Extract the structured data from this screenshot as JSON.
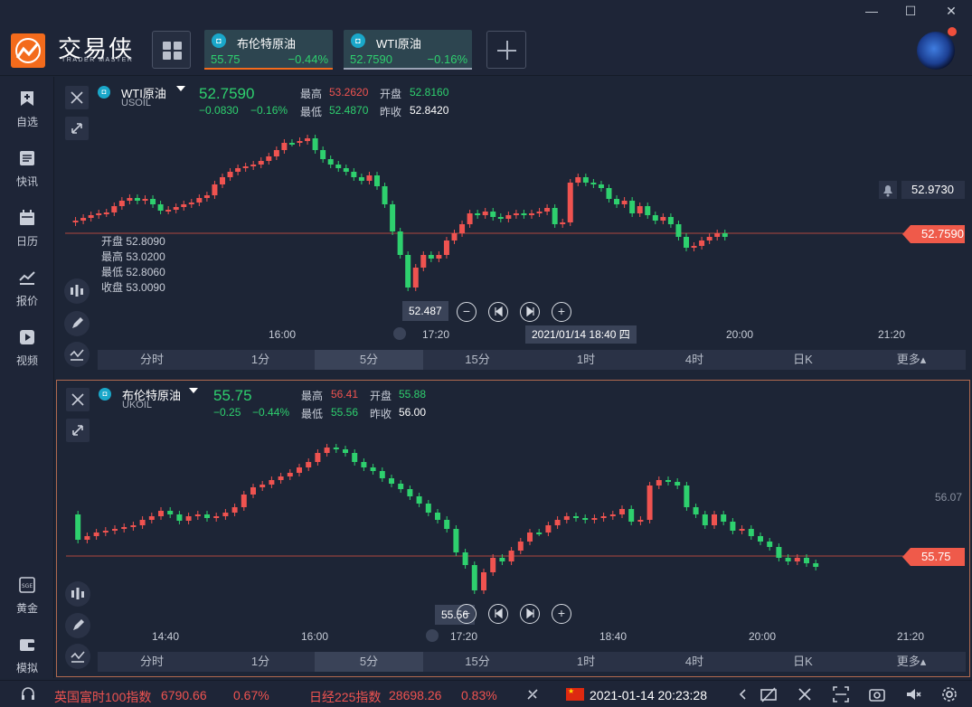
{
  "window": {
    "minimize": "—",
    "maximize": "☐",
    "close": "✕"
  },
  "brand": {
    "name": "交易侠",
    "sub": "TRADER MASTER"
  },
  "tabs": [
    {
      "name": "布伦特原油",
      "price": "55.75",
      "change": "−0.44%",
      "underline": "#f36b1c"
    },
    {
      "name": "WTI原油",
      "price": "52.7590",
      "change": "−0.16%",
      "underline": "#9aa3b5"
    }
  ],
  "sidebar": [
    {
      "label": "自选",
      "icon": "bookmark-icon"
    },
    {
      "label": "快讯",
      "icon": "news-icon"
    },
    {
      "label": "日历",
      "icon": "calendar-icon"
    },
    {
      "label": "报价",
      "icon": "quotes-icon"
    },
    {
      "label": "视频",
      "icon": "video-icon"
    },
    {
      "label": "黄金",
      "icon": "gold-icon"
    },
    {
      "label": "模拟",
      "icon": "wallet-icon"
    }
  ],
  "timeframes": [
    "分时",
    "1分",
    "5分",
    "15分",
    "1时",
    "4时",
    "日K",
    "更多"
  ],
  "selected_timeframe": "5分",
  "panel1": {
    "symbol": "WTI原油",
    "code": "USOIL",
    "price": "52.7590",
    "change": "−0.0830",
    "change_pct": "−0.16%",
    "high_label": "最高",
    "high": "53.2620",
    "open_label": "开盘",
    "open": "52.8160",
    "low_label": "最低",
    "low": "52.4870",
    "prev_label": "昨收",
    "prev": "52.8420",
    "ohlc_box": [
      {
        "label": "开盘",
        "value": "52.8090"
      },
      {
        "label": "最高",
        "value": "53.0200"
      },
      {
        "label": "最低",
        "value": "52.8060"
      },
      {
        "label": "收盘",
        "value": "53.0090"
      }
    ],
    "alert_price": "52.9730",
    "last_tag": "52.7590",
    "low_marker": "52.487",
    "crosshair_time": "2021/01/14 18:40 四",
    "x_ticks": [
      "16:00",
      "17:20",
      "20:00",
      "21:20"
    ]
  },
  "panel2": {
    "symbol": "布伦特原油",
    "code": "UKOIL",
    "price": "55.75",
    "change": "−0.25",
    "change_pct": "−0.44%",
    "high_label": "最高",
    "high": "56.41",
    "open_label": "开盘",
    "open": "55.88",
    "low_label": "最低",
    "low": "55.56",
    "prev_label": "昨收",
    "prev": "56.00",
    "right_label": "56.07",
    "last_tag": "55.75",
    "low_marker": "55.56",
    "x_ticks": [
      "14:40",
      "16:00",
      "17:20",
      "18:40",
      "20:00",
      "21:20"
    ]
  },
  "status": {
    "idx1_name": "英国富时100指数",
    "idx1_value": "6790.66",
    "idx1_change": "0.67%",
    "idx2_name": "日经225指数",
    "idx2_value": "28698.26",
    "idx2_change": "0.83%",
    "datetime": "2021-01-14 20:23:28"
  },
  "colors": {
    "up": "#ef5350",
    "down": "#2ed06e",
    "bg": "#1d2536",
    "accent": "#f36b1c"
  }
}
